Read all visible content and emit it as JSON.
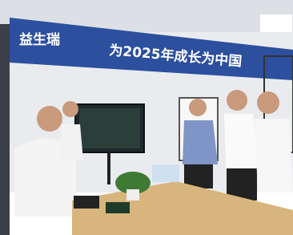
{
  "banner": {
    "brand": "益生瑞",
    "slogan": "为2025年成长为中国"
  }
}
